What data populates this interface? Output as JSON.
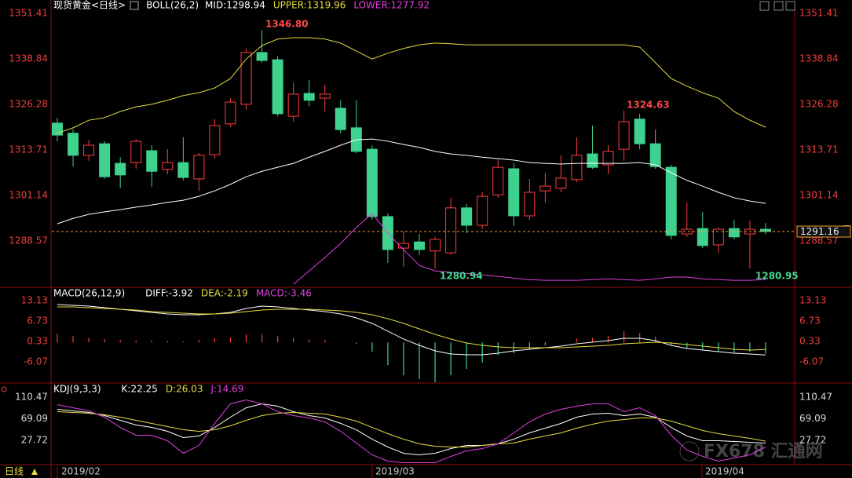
{
  "chart_data": [
    {
      "type": "candlestick",
      "title": "现货黄金<日线>",
      "indicator": "BOLL(26,2)",
      "open": [
        1321.1,
        1318.3,
        1312.2,
        1315.4,
        1310.0,
        1310.2,
        1313.5,
        1308.3,
        1310.2,
        1305.7,
        1312.4,
        1320.9,
        1326.3,
        1340.6,
        1338.6,
        1323.0,
        1329.3,
        1328.0,
        1325.2,
        1319.8,
        1313.9,
        1295.3,
        1286.6,
        1288.3,
        1285.8,
        1285.3,
        1297.7,
        1292.9,
        1301.3,
        1308.5,
        1295.5,
        1302.4,
        1303.1,
        1305.5,
        1312.6,
        1309.6,
        1313.9,
        1322.2,
        1315.4,
        1308.9,
        1290.5,
        1292.0,
        1287.5,
        1292.0,
        1290.5,
        1291.8
      ],
      "high": [
        1322.6,
        1319.4,
        1316.5,
        1316.1,
        1311.7,
        1316.7,
        1315.0,
        1313.9,
        1317.2,
        1312.8,
        1322.2,
        1328.0,
        1341.7,
        1346.8,
        1339.5,
        1332.3,
        1333.0,
        1331.7,
        1327.4,
        1327.4,
        1315.0,
        1296.2,
        1291.2,
        1290.5,
        1289.7,
        1300.5,
        1298.8,
        1302.0,
        1311.1,
        1310.0,
        1305.7,
        1307.4,
        1312.2,
        1317.2,
        1320.4,
        1315.0,
        1324.63,
        1323.7,
        1319.3,
        1309.6,
        1299.2,
        1296.6,
        1292.3,
        1294.4,
        1294.2,
        1293.5
      ],
      "low": [
        1316.1,
        1309.1,
        1310.7,
        1305.7,
        1303.1,
        1308.5,
        1303.5,
        1307.0,
        1305.3,
        1302.4,
        1311.3,
        1320.0,
        1324.8,
        1337.8,
        1323.0,
        1321.5,
        1325.8,
        1324.3,
        1318.3,
        1312.8,
        1294.4,
        1282.5,
        1281.4,
        1284.7,
        1280.94,
        1284.7,
        1290.7,
        1291.8,
        1300.5,
        1292.7,
        1294.4,
        1299.2,
        1302.0,
        1304.8,
        1308.5,
        1307.0,
        1310.7,
        1313.9,
        1308.5,
        1289.0,
        1289.7,
        1286.6,
        1285.3,
        1289.0,
        1280.95,
        1290.5
      ],
      "close": [
        1317.8,
        1312.2,
        1315.0,
        1306.3,
        1306.8,
        1316.1,
        1307.8,
        1310.2,
        1306.1,
        1312.2,
        1320.4,
        1326.9,
        1340.6,
        1338.4,
        1323.7,
        1329.1,
        1327.4,
        1329.1,
        1319.3,
        1313.3,
        1295.3,
        1286.2,
        1287.9,
        1286.2,
        1289.0,
        1297.7,
        1292.9,
        1300.9,
        1308.9,
        1295.5,
        1302.0,
        1303.7,
        1305.9,
        1312.2,
        1308.9,
        1313.3,
        1321.5,
        1315.4,
        1309.1,
        1290.1,
        1291.8,
        1287.3,
        1291.8,
        1289.7,
        1291.8,
        1291.16
      ],
      "up_color": "#ff3c3c",
      "down_color": "#3fd28e",
      "series": [
        {
          "name": "MID:1298.94",
          "color": "#ffffff",
          "values": [
            1293.3,
            1294.8,
            1295.9,
            1296.6,
            1297.2,
            1297.9,
            1298.5,
            1299.2,
            1299.8,
            1300.9,
            1302.4,
            1304.2,
            1306.3,
            1307.8,
            1308.9,
            1310.0,
            1311.7,
            1313.3,
            1315.0,
            1316.5,
            1316.7,
            1316.1,
            1315.2,
            1314.4,
            1313.3,
            1312.6,
            1312.2,
            1311.7,
            1311.3,
            1310.9,
            1310.2,
            1310.0,
            1309.8,
            1310.0,
            1310.0,
            1310.0,
            1310.0,
            1310.2,
            1309.6,
            1307.4,
            1305.3,
            1303.7,
            1302.0,
            1300.5,
            1299.6,
            1298.94
          ]
        },
        {
          "name": "UPPER:1319.96",
          "color": "#e6dc3c",
          "values": [
            1318.3,
            1319.8,
            1321.9,
            1322.6,
            1324.3,
            1325.6,
            1326.3,
            1327.4,
            1328.7,
            1329.5,
            1330.8,
            1333.4,
            1338.8,
            1342.5,
            1344.3,
            1344.7,
            1344.7,
            1344.3,
            1343.2,
            1341.0,
            1338.8,
            1340.4,
            1341.7,
            1342.7,
            1343.2,
            1343.0,
            1342.7,
            1342.7,
            1342.7,
            1342.7,
            1342.7,
            1342.7,
            1342.7,
            1342.7,
            1342.7,
            1342.7,
            1342.7,
            1342.1,
            1337.8,
            1333.4,
            1331.3,
            1329.5,
            1328.0,
            1324.3,
            1321.9,
            1319.96
          ]
        },
        {
          "name": "LOWER:1277.92",
          "color": "#e040e0",
          "values": [
            null,
            null,
            null,
            null,
            null,
            null,
            null,
            null,
            null,
            null,
            null,
            null,
            null,
            null,
            null,
            1276.6,
            1280.3,
            1284.0,
            1287.9,
            1292.3,
            1296.2,
            1290.7,
            1286.2,
            1281.8,
            1280.3,
            1279.9,
            1279.6,
            1279.2,
            1278.8,
            1278.3,
            1277.9,
            1277.7,
            1277.7,
            1277.7,
            1277.9,
            1278.1,
            1277.9,
            1277.7,
            1278.1,
            1278.6,
            1278.6,
            1278.1,
            1277.9,
            1277.7,
            1277.7,
            1277.92
          ]
        }
      ],
      "ylim": [
        1276.0,
        1355.09
      ],
      "yticks": [
        1351.41,
        1338.84,
        1326.28,
        1313.71,
        1301.14,
        1288.57
      ],
      "last_price": 1291.16,
      "annotations": [
        "1346.80",
        "1324.63",
        "1280.94",
        "1280.95"
      ]
    },
    {
      "type": "macd",
      "title": "MACD(26,12,9)",
      "series": [
        {
          "name": "DIFF:-3.92",
          "color": "#ffffff",
          "values": [
            11.9,
            11.65,
            11.41,
            10.92,
            10.42,
            9.93,
            9.44,
            8.95,
            8.71,
            8.71,
            8.95,
            9.44,
            10.67,
            11.41,
            11.16,
            10.67,
            10.18,
            9.69,
            8.95,
            7.72,
            5.99,
            3.53,
            1.07,
            -0.9,
            -2.62,
            -3.61,
            -3.86,
            -3.86,
            -3.36,
            -2.62,
            -2.13,
            -1.64,
            -1.15,
            -0.41,
            0.08,
            0.58,
            1.31,
            1.31,
            0.58,
            -0.9,
            -1.89,
            -2.38,
            -2.87,
            -3.36,
            -3.61,
            -3.92
          ]
        },
        {
          "name": "DEA:-2.19",
          "color": "#e6dc3c",
          "values": [
            11.16,
            11.16,
            10.92,
            10.67,
            10.42,
            10.18,
            9.69,
            9.44,
            9.2,
            8.95,
            8.95,
            9.2,
            9.69,
            10.18,
            10.42,
            10.42,
            10.42,
            10.18,
            9.93,
            9.44,
            8.7,
            7.47,
            5.99,
            4.27,
            2.55,
            1.07,
            -0.16,
            -0.9,
            -1.39,
            -1.64,
            -1.64,
            -1.64,
            -1.64,
            -1.39,
            -1.15,
            -0.9,
            -0.41,
            -0.16,
            0.08,
            -0.16,
            -0.65,
            -1.15,
            -1.64,
            -2.13,
            -2.38,
            -2.19
          ]
        },
        {
          "name": "MACD:-3.46",
          "color": "#e040e0",
          "style": "bar",
          "up_color": "#ff3c3c",
          "down_color": "#3fd28e",
          "values": [
            2.7,
            2.0,
            1.5,
            1.0,
            0.8,
            0.6,
            0.6,
            0.5,
            0.3,
            0.8,
            1.3,
            1.5,
            2.5,
            2.7,
            2.0,
            1.5,
            1.0,
            0.8,
            0.1,
            -0.4,
            -2.9,
            -7.1,
            -10.3,
            -11.5,
            -12.5,
            -10.3,
            -8.3,
            -6.3,
            -3.9,
            -3.4,
            -2.1,
            -0.9,
            0.1,
            1.2,
            1.5,
            2.0,
            3.5,
            3.0,
            1.8,
            -0.9,
            -1.9,
            -2.4,
            -2.9,
            -3.2,
            -2.9,
            -3.46
          ]
        }
      ],
      "ylim": [
        -12.72,
        16.82
      ],
      "yticks": [
        13.13,
        6.73,
        0.33,
        -6.07
      ]
    },
    {
      "type": "kdj",
      "title": "KDJ(9,3,3)",
      "series": [
        {
          "name": "K:22.25",
          "color": "#ffffff",
          "values": [
            87.1,
            84.1,
            81.1,
            75.1,
            66.1,
            57.1,
            52.5,
            45.0,
            33.0,
            36.0,
            52.5,
            72.1,
            90.2,
            97.7,
            93.2,
            82.6,
            75.1,
            70.6,
            60.1,
            48.0,
            29.9,
            14.9,
            2.9,
            -0.1,
            2.9,
            11.9,
            17.9,
            17.9,
            20.9,
            29.9,
            42.0,
            51.0,
            60.1,
            72.1,
            78.1,
            79.6,
            75.1,
            78.1,
            72.1,
            52.5,
            36.0,
            27.0,
            27.0,
            25.5,
            24.0,
            22.25
          ]
        },
        {
          "name": "D:26.03",
          "color": "#e6dc3c",
          "values": [
            82.6,
            81.1,
            79.6,
            76.6,
            72.1,
            66.1,
            60.1,
            54.0,
            48.0,
            45.0,
            48.0,
            55.5,
            66.1,
            75.1,
            79.6,
            81.1,
            79.6,
            78.1,
            72.1,
            64.6,
            52.5,
            40.5,
            29.9,
            20.9,
            16.4,
            14.9,
            14.9,
            17.9,
            20.9,
            22.4,
            29.9,
            36.0,
            42.0,
            51.0,
            58.6,
            64.6,
            67.6,
            70.6,
            70.6,
            64.6,
            55.5,
            46.5,
            40.5,
            36.0,
            31.5,
            26.03
          ]
        },
        {
          "name": "J:14.69",
          "color": "#e040e0",
          "values": [
            96.2,
            90.2,
            84.1,
            72.1,
            52.5,
            37.5,
            37.5,
            27.0,
            2.9,
            17.9,
            60.1,
            97.7,
            105.2,
            97.7,
            82.6,
            75.1,
            70.6,
            63.1,
            45.0,
            22.4,
            -0.1,
            -12.2,
            -15.2,
            -15.2,
            -15.2,
            -3.1,
            7.4,
            11.9,
            20.9,
            42.0,
            63.1,
            78.1,
            87.1,
            93.2,
            97.7,
            97.7,
            82.6,
            90.2,
            75.1,
            37.5,
            8.9,
            -3.1,
            -12.2,
            -6.2,
            -0.1,
            14.69
          ]
        }
      ],
      "ylim": [
        -18.94,
        134.55
      ],
      "yticks": [
        110.47,
        69.09,
        27.72
      ]
    }
  ],
  "period": "日线",
  "dates": [
    "2019/02",
    "2019/03",
    "2019/04"
  ],
  "watermark": "FX678 汇通网"
}
